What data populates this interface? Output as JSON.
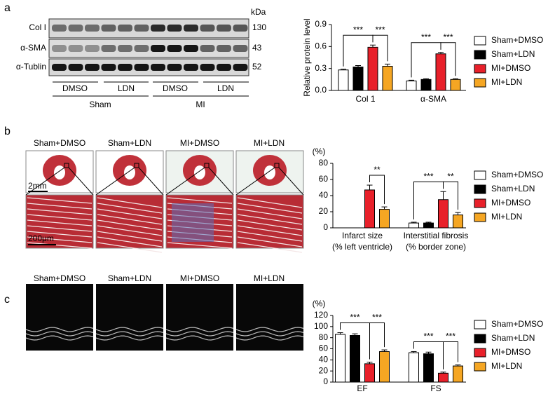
{
  "panel_labels": [
    "a",
    "b",
    "c"
  ],
  "blot": {
    "unit": "kDa",
    "rows": [
      "Col I",
      "α-SMA",
      "α-Tublin"
    ],
    "sizes": [
      "130",
      "43",
      "52"
    ],
    "lanes": [
      "DMSO",
      "LDN",
      "DMSO",
      "LDN"
    ],
    "groups": [
      "Sham",
      "MI"
    ]
  },
  "histology": {
    "labels": [
      "Sham+DMSO",
      "Sham+LDN",
      "MI+DMSO",
      "MI+LDN"
    ],
    "scale_top": "2mm",
    "scale_bottom": "200μm"
  },
  "echo": {
    "labels": [
      "Sham+DMSO",
      "Sham+LDN",
      "MI+DMSO",
      "MI+LDN"
    ]
  },
  "chart_data": [
    {
      "type": "bar",
      "y_label": "Relative protein level",
      "ylim": [
        0,
        0.9
      ],
      "yticks": [
        {
          "value": 0,
          "label": "0.0"
        },
        0.3,
        0.6,
        0.9
      ],
      "categories": [
        "Col 1",
        "α-SMA"
      ],
      "legend": "right",
      "series": [
        {
          "name": "Sham+DMSO",
          "color": "#ffffff",
          "values": [
            0.28,
            0.13
          ],
          "errors": [
            0.01,
            0.01
          ]
        },
        {
          "name": "Sham+LDN",
          "color": "#000000",
          "values": [
            0.32,
            0.15
          ],
          "errors": [
            0.02,
            0.01
          ]
        },
        {
          "name": "MI+DMSO",
          "color": "#e8202a",
          "values": [
            0.59,
            0.5
          ],
          "errors": [
            0.03,
            0.02
          ]
        },
        {
          "name": "MI+LDN",
          "color": "#f5a623",
          "values": [
            0.33,
            0.15
          ],
          "errors": [
            0.03,
            0.01
          ]
        }
      ],
      "annotations": [
        "***",
        "***",
        "***",
        "***"
      ]
    },
    {
      "type": "bar",
      "y_label": "(%)",
      "ylim": [
        0,
        80
      ],
      "yticks": [
        0,
        20,
        40,
        60,
        80
      ],
      "categories": [
        "Infarct size",
        "Interstitial fibrosis"
      ],
      "category_sublabels": [
        "(% left ventricle)",
        "(% border zone)"
      ],
      "legend": "right",
      "series": [
        {
          "name": "Sham+DMSO",
          "color": "#ffffff",
          "values": [
            null,
            6
          ],
          "errors": [
            null,
            1
          ]
        },
        {
          "name": "Sham+LDN",
          "color": "#000000",
          "values": [
            null,
            6
          ],
          "errors": [
            null,
            1
          ]
        },
        {
          "name": "MI+DMSO",
          "color": "#e8202a",
          "values": [
            47,
            35
          ],
          "errors": [
            6,
            10
          ]
        },
        {
          "name": "MI+LDN",
          "color": "#f5a623",
          "values": [
            23,
            16
          ],
          "errors": [
            3,
            3
          ]
        }
      ],
      "annotations": [
        "**",
        "***",
        "**"
      ]
    },
    {
      "type": "bar",
      "y_label": "(%)",
      "ylim": [
        0,
        120
      ],
      "yticks": [
        0,
        20,
        40,
        60,
        80,
        100,
        120
      ],
      "categories": [
        "EF",
        "FS"
      ],
      "legend": "right",
      "series": [
        {
          "name": "Sham+DMSO",
          "color": "#ffffff",
          "values": [
            86,
            53
          ],
          "errors": [
            3,
            2
          ]
        },
        {
          "name": "Sham+LDN",
          "color": "#000000",
          "values": [
            84,
            51
          ],
          "errors": [
            3,
            3
          ]
        },
        {
          "name": "MI+DMSO",
          "color": "#e8202a",
          "values": [
            33,
            16
          ],
          "errors": [
            3,
            2
          ]
        },
        {
          "name": "MI+LDN",
          "color": "#f5a623",
          "values": [
            55,
            29
          ],
          "errors": [
            3,
            2
          ]
        }
      ],
      "annotations": [
        "***",
        "***",
        "***",
        "***"
      ]
    }
  ]
}
